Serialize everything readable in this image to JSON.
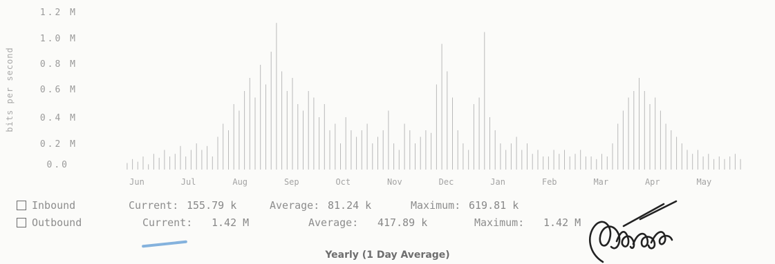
{
  "chart_data": {
    "type": "bar",
    "ylabel": "bits per second",
    "y_ticks": [
      "0.0",
      "0.2 M",
      "0.4 M",
      "0.6 M",
      "0.8 M",
      "1.0 M",
      "1.2 M"
    ],
    "ylim": [
      0,
      1.2
    ],
    "y_unit": "M",
    "months": [
      "Jun",
      "Jul",
      "Aug",
      "Sep",
      "Oct",
      "Nov",
      "Dec",
      "Jan",
      "Feb",
      "Mar",
      "Apr",
      "May"
    ],
    "series": [
      {
        "name": "Inbound",
        "values": [
          0.05,
          0.08,
          0.06,
          0.1,
          0.04,
          0.12,
          0.09,
          0.15,
          0.1,
          0.12,
          0.18,
          0.1,
          0.15,
          0.2,
          0.15,
          0.18,
          0.1,
          0.25,
          0.35,
          0.3,
          0.5,
          0.45,
          0.6,
          0.7,
          0.55,
          0.8,
          0.65,
          0.9,
          1.12,
          0.75,
          0.6,
          0.7,
          0.5,
          0.45,
          0.6,
          0.55,
          0.4,
          0.5,
          0.3,
          0.35,
          0.2,
          0.4,
          0.3,
          0.25,
          0.3,
          0.35,
          0.2,
          0.25,
          0.3,
          0.45,
          0.2,
          0.15,
          0.35,
          0.3,
          0.2,
          0.25,
          0.3,
          0.28,
          0.65,
          0.96,
          0.75,
          0.55,
          0.3,
          0.2,
          0.15,
          0.5,
          0.55,
          1.05,
          0.4,
          0.3,
          0.2,
          0.15,
          0.2,
          0.25,
          0.15,
          0.2,
          0.12,
          0.15,
          0.1,
          0.1,
          0.15,
          0.12,
          0.15,
          0.1,
          0.12,
          0.15,
          0.1,
          0.1,
          0.08,
          0.12,
          0.1,
          0.2,
          0.35,
          0.45,
          0.55,
          0.6,
          0.7,
          0.6,
          0.5,
          0.55,
          0.45,
          0.35,
          0.3,
          0.25,
          0.2,
          0.15,
          0.12,
          0.15,
          0.1,
          0.12,
          0.08,
          0.1,
          0.08,
          0.1,
          0.12,
          0.08
        ]
      },
      {
        "name": "Outbound",
        "values": []
      }
    ]
  },
  "legend": {
    "inbound": {
      "label": "Inbound",
      "current_label": "Current:",
      "current_value": "155.79 k",
      "average_label": "Average:",
      "average_value": "81.24 k",
      "maximum_label": "Maximum:",
      "maximum_value": "619.81 k"
    },
    "outbound": {
      "label": "Outbound",
      "current_label": "Current:",
      "current_value": "1.42 M",
      "average_label": "Average:",
      "average_value": "417.89 k",
      "maximum_label": "Maximum:",
      "maximum_value": "1.42 M"
    }
  },
  "caption": "Yearly (1 Day Average)",
  "colors": {
    "bar": "#b9b9b9",
    "text": "#8d8d8d",
    "pen_mark": "#6fa5d8",
    "signature": "#222222"
  }
}
